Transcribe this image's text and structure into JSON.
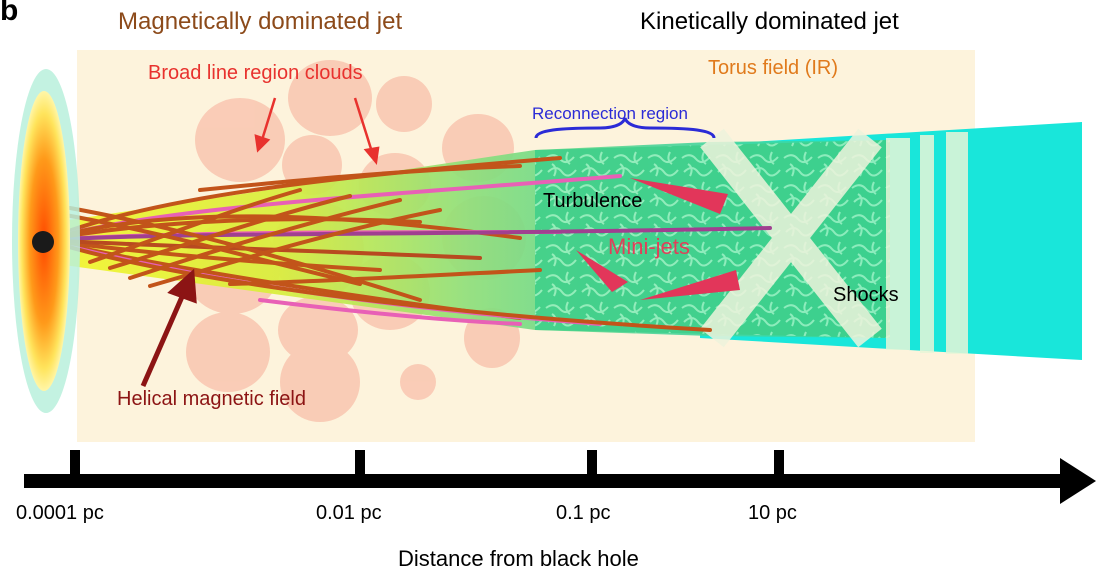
{
  "panel_label": "b",
  "regions": {
    "magnetic": "Magnetically dominated jet",
    "kinetic": "Kinetically dominated jet"
  },
  "labels": {
    "blr": "Broad line region clouds",
    "torus": "Torus field (IR)",
    "reconnection": "Reconnection region",
    "turbulence": "Turbulence",
    "minijets": "Mini-jets",
    "shocks": "Shocks",
    "helical": "Helical magnetic field"
  },
  "axis": {
    "title": "Distance from black hole",
    "ticks": [
      "0.0001 pc",
      "0.01 pc",
      "0.1 pc",
      "10 pc"
    ]
  },
  "colors": {
    "torus_bg": "#fdf3dc",
    "cloud": "#f9c8b2",
    "jet_yellow": "#f2f230",
    "jet_green": "#6fdc9c",
    "cyan": "#19e6da",
    "fieldline": "#c2541a",
    "pink_line": "#e860b6",
    "minijet": "#e2365a"
  }
}
